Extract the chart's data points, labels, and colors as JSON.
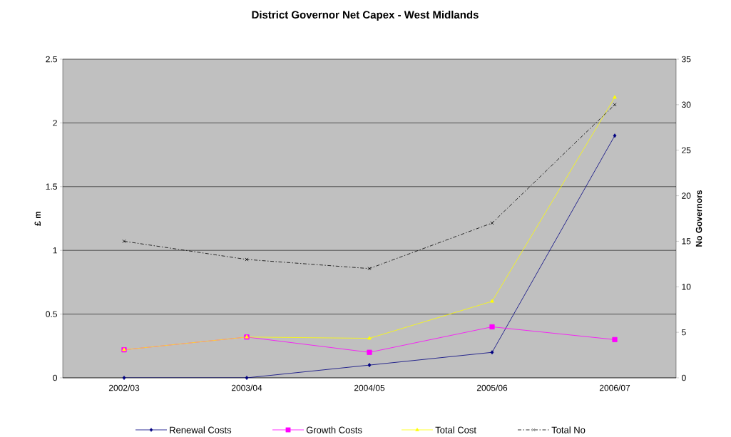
{
  "chart_data": {
    "type": "line",
    "title": "District Governor Net Capex - West Midlands",
    "ylabel": "£ m",
    "y2label": "No Governors",
    "categories": [
      "2002/03",
      "2003/04",
      "2004/05",
      "2005/06",
      "2006/07"
    ],
    "series": [
      {
        "name": "Renewal Costs",
        "color": "#000080",
        "marker": "diamond",
        "values": [
          0,
          0,
          0.1,
          0.2,
          1.9
        ]
      },
      {
        "name": "Growth Costs",
        "color": "#ff00ff",
        "marker": "square",
        "values": [
          0.22,
          0.32,
          0.2,
          0.4,
          0.3
        ]
      },
      {
        "name": "Total Cost",
        "color": "#ffff00",
        "marker": "triangle",
        "values": [
          0.22,
          0.32,
          0.31,
          0.6,
          2.2
        ]
      },
      {
        "name": "Total No",
        "color": "#000000",
        "marker": "cross",
        "line_style": "dashed",
        "axis": "y2",
        "values": [
          15,
          13,
          12,
          17,
          30
        ]
      }
    ],
    "ylim": [
      0,
      2.5
    ],
    "yticks": [
      0,
      0.5,
      1,
      1.5,
      2,
      2.5
    ],
    "y2lim": [
      0,
      35
    ],
    "y2ticks": [
      0,
      5,
      10,
      15,
      20,
      25,
      30,
      35
    ],
    "grid": "y",
    "legend": "bottom"
  }
}
